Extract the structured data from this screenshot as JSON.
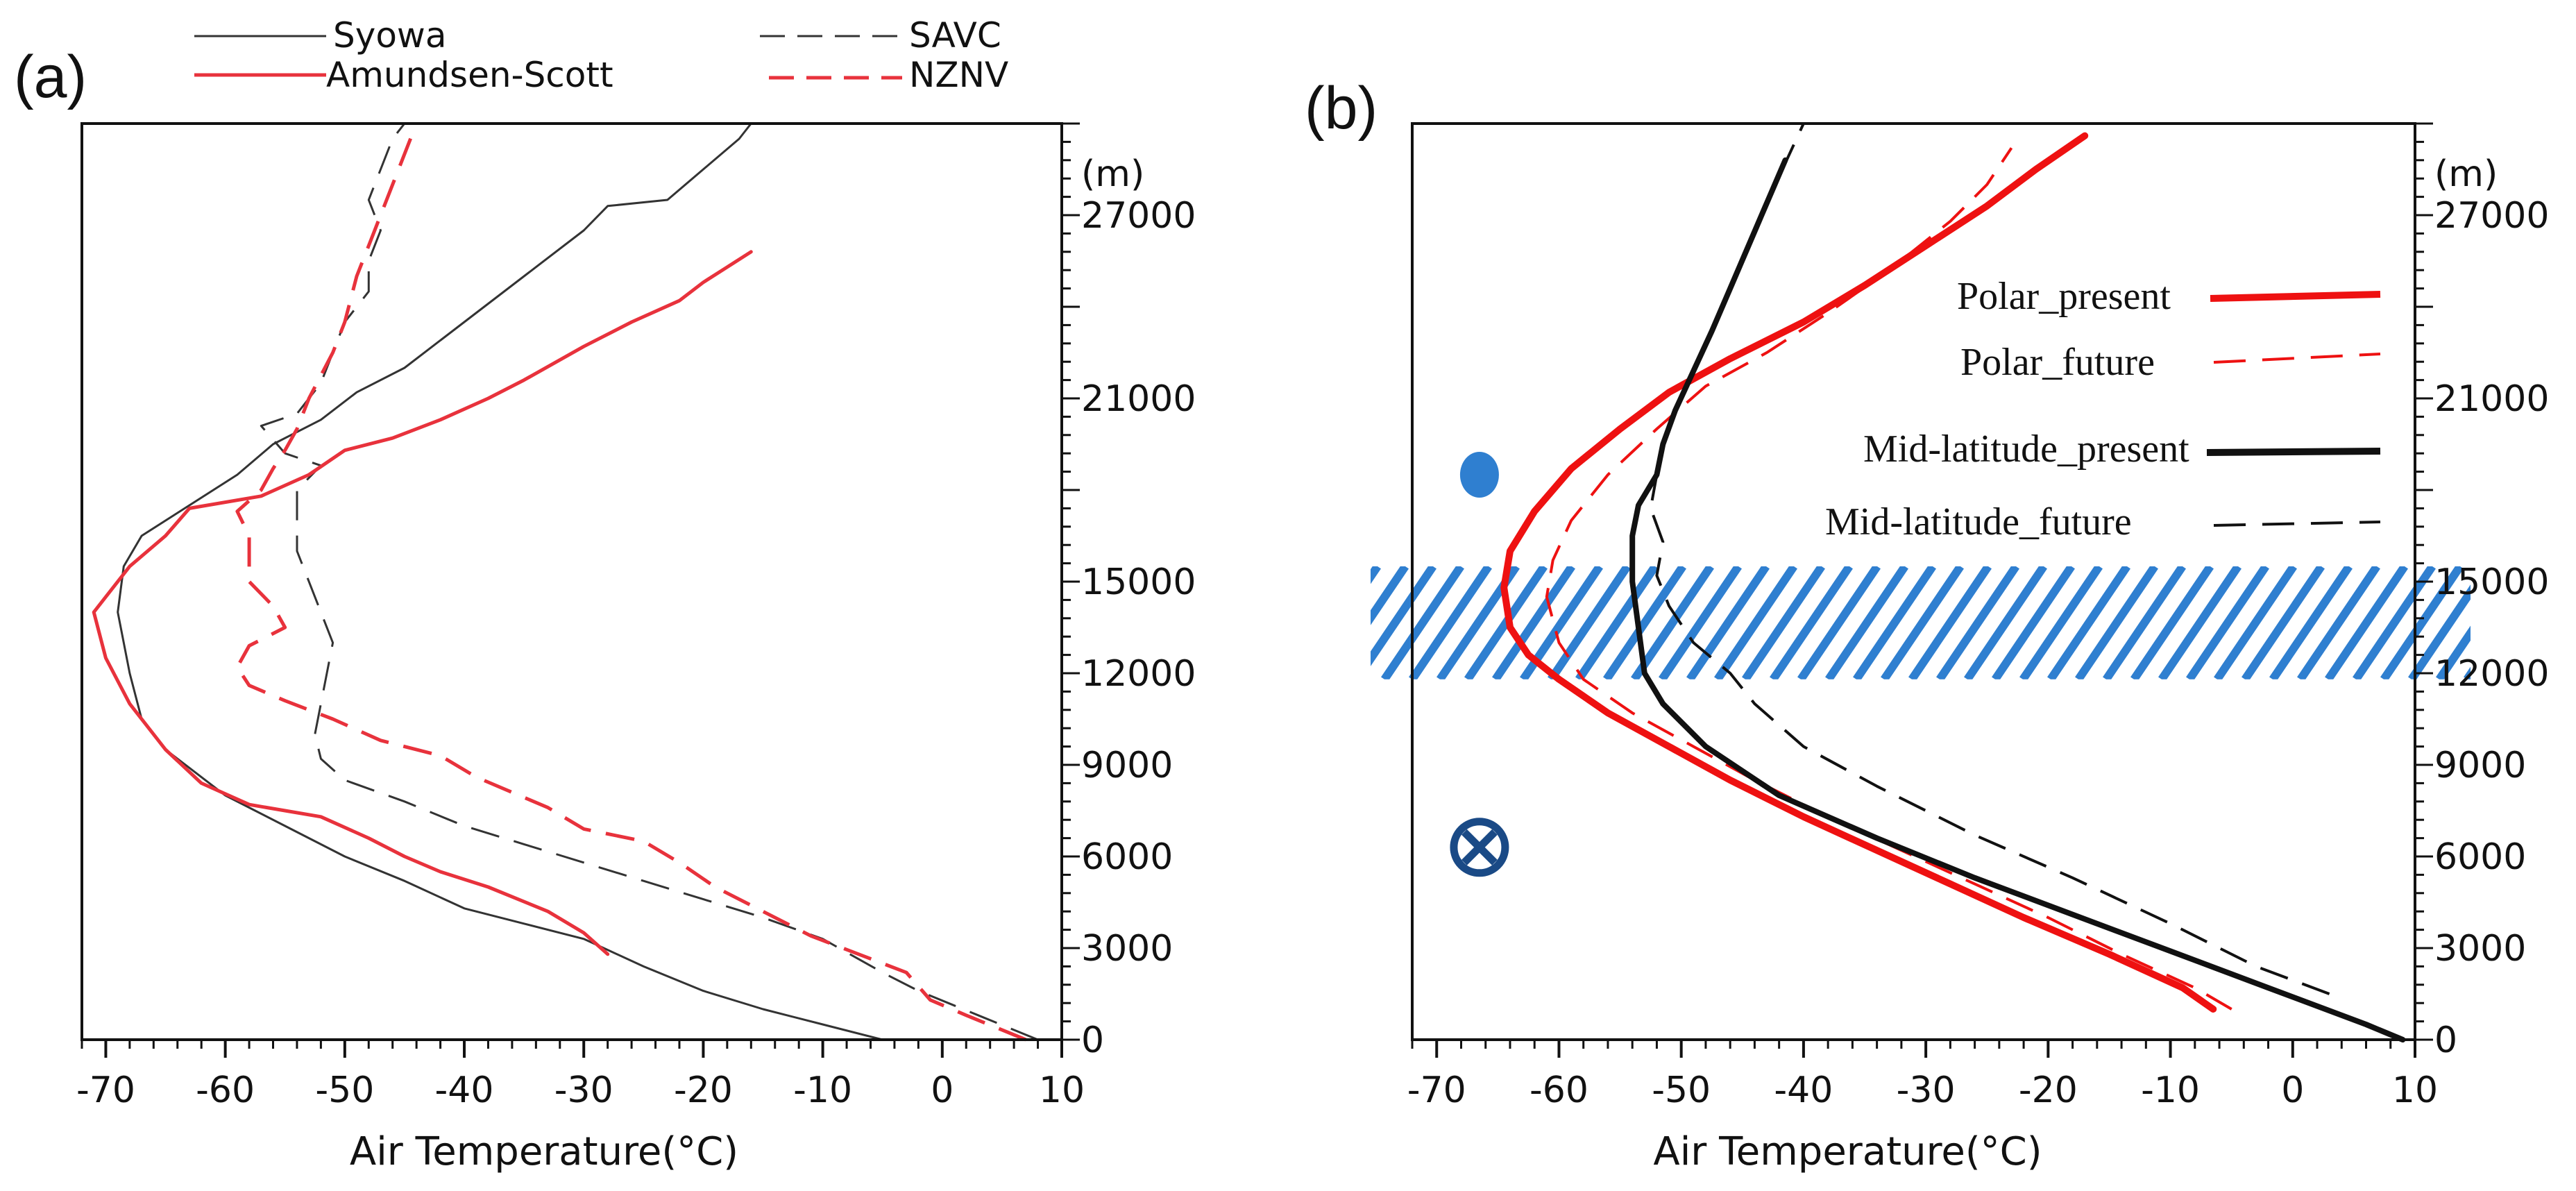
{
  "chart_data": [
    {
      "panel": "(a)",
      "type": "line",
      "xlabel": "Air Temperature(°C)",
      "xlim": [
        -72,
        10
      ],
      "xticks": [
        -70,
        -60,
        -50,
        -40,
        -30,
        -20,
        -10,
        0,
        10
      ],
      "y_unit": "(m)",
      "ylim": [
        0,
        30000
      ],
      "yticks": [
        0,
        3000,
        6000,
        9000,
        12000,
        15000,
        21000,
        27000
      ],
      "legend": [
        {
          "name": "Syowa",
          "color": "#333333",
          "dash": "solid"
        },
        {
          "name": "SAVC",
          "color": "#333333",
          "dash": "dashed"
        },
        {
          "name": "Amundsen-Scott",
          "color": "#e8323c",
          "dash": "solid"
        },
        {
          "name": "NZNV",
          "color": "#e8323c",
          "dash": "dashed"
        }
      ],
      "series": [
        {
          "name": "Syowa",
          "color": "#333333",
          "dash": "solid",
          "width": 3,
          "points": [
            [
              -5,
              0
            ],
            [
              -10,
              500
            ],
            [
              -15,
              1000
            ],
            [
              -20,
              1600
            ],
            [
              -25,
              2400
            ],
            [
              -30,
              3300
            ],
            [
              -35,
              3800
            ],
            [
              -40,
              4300
            ],
            [
              -45,
              5200
            ],
            [
              -50,
              6000
            ],
            [
              -55,
              7000
            ],
            [
              -60,
              8000
            ],
            [
              -65,
              9500
            ],
            [
              -67,
              10500
            ],
            [
              -68,
              12000
            ],
            [
              -69,
              14000
            ],
            [
              -68.5,
              15500
            ],
            [
              -67,
              16500
            ],
            [
              -63,
              17500
            ],
            [
              -59,
              18500
            ],
            [
              -56,
              19500
            ],
            [
              -52,
              20300
            ],
            [
              -49,
              21200
            ],
            [
              -45,
              22000
            ],
            [
              -40,
              23500
            ],
            [
              -35,
              25000
            ],
            [
              -30,
              26500
            ],
            [
              -28,
              27300
            ],
            [
              -23,
              27500
            ],
            [
              -20,
              28500
            ],
            [
              -17,
              29500
            ],
            [
              -16,
              30000
            ]
          ]
        },
        {
          "name": "SAVC",
          "color": "#333333",
          "dash": "dashed",
          "width": 3,
          "points": [
            [
              8,
              0
            ],
            [
              3,
              800
            ],
            [
              -2,
              1600
            ],
            [
              -5,
              2200
            ],
            [
              -10,
              3300
            ],
            [
              -15,
              4000
            ],
            [
              -20,
              4600
            ],
            [
              -25,
              5200
            ],
            [
              -30,
              5800
            ],
            [
              -35,
              6400
            ],
            [
              -40,
              7000
            ],
            [
              -45,
              7800
            ],
            [
              -50,
              8500
            ],
            [
              -52,
              9200
            ],
            [
              -52.5,
              10000
            ],
            [
              -52,
              11000
            ],
            [
              -51.5,
              12000
            ],
            [
              -51,
              13000
            ],
            [
              -52,
              14000
            ],
            [
              -53,
              15000
            ],
            [
              -54,
              16000
            ],
            [
              -54,
              17000
            ],
            [
              -54,
              18000
            ],
            [
              -52,
              18800
            ],
            [
              -55,
              19200
            ],
            [
              -57,
              20100
            ],
            [
              -54,
              20500
            ],
            [
              -52,
              21500
            ],
            [
              -51,
              22500
            ],
            [
              -50,
              23500
            ],
            [
              -48,
              24500
            ],
            [
              -48,
              25500
            ],
            [
              -47,
              26500
            ],
            [
              -48,
              27500
            ],
            [
              -47,
              28500
            ],
            [
              -46,
              29500
            ],
            [
              -45,
              30000
            ]
          ]
        },
        {
          "name": "Amundsen-Scott",
          "color": "#e8323c",
          "dash": "solid",
          "width": 5,
          "points": [
            [
              -28,
              2800
            ],
            [
              -30,
              3500
            ],
            [
              -33,
              4200
            ],
            [
              -38,
              5000
            ],
            [
              -42,
              5500
            ],
            [
              -45,
              6000
            ],
            [
              -48,
              6600
            ],
            [
              -52,
              7300
            ],
            [
              -55,
              7500
            ],
            [
              -58,
              7700
            ],
            [
              -62,
              8400
            ],
            [
              -65,
              9500
            ],
            [
              -68,
              11000
            ],
            [
              -70,
              12500
            ],
            [
              -71,
              14000
            ],
            [
              -70,
              14500
            ],
            [
              -68,
              15500
            ],
            [
              -65,
              16500
            ],
            [
              -63,
              17400
            ],
            [
              -57,
              17800
            ],
            [
              -53,
              18500
            ],
            [
              -50,
              19300
            ],
            [
              -46,
              19700
            ],
            [
              -42,
              20300
            ],
            [
              -38,
              21000
            ],
            [
              -35,
              21600
            ],
            [
              -30,
              22700
            ],
            [
              -26,
              23500
            ],
            [
              -22,
              24200
            ],
            [
              -20,
              24800
            ],
            [
              -18,
              25300
            ],
            [
              -16,
              25800
            ]
          ]
        },
        {
          "name": "NZNV",
          "color": "#e8323c",
          "dash": "dashed",
          "width": 5,
          "points": [
            [
              7,
              0
            ],
            [
              2,
              800
            ],
            [
              -1,
              1300
            ],
            [
              -3,
              2200
            ],
            [
              -7,
              2800
            ],
            [
              -11,
              3400
            ],
            [
              -15,
              4200
            ],
            [
              -19,
              5000
            ],
            [
              -22,
              5800
            ],
            [
              -25,
              6500
            ],
            [
              -30,
              6900
            ],
            [
              -33,
              7600
            ],
            [
              -36,
              8100
            ],
            [
              -39,
              8600
            ],
            [
              -42,
              9300
            ],
            [
              -47,
              9800
            ],
            [
              -51,
              10500
            ],
            [
              -55,
              11100
            ],
            [
              -58,
              11600
            ],
            [
              -59,
              12200
            ],
            [
              -58,
              12900
            ],
            [
              -55,
              13500
            ],
            [
              -56,
              14200
            ],
            [
              -58,
              15000
            ],
            [
              -58,
              16500
            ],
            [
              -59,
              17300
            ],
            [
              -57,
              18000
            ],
            [
              -56,
              18700
            ],
            [
              -55,
              19300
            ],
            [
              -54,
              20000
            ],
            [
              -53,
              21000
            ],
            [
              -51,
              22500
            ],
            [
              -50,
              23500
            ],
            [
              -49,
              25000
            ],
            [
              -48,
              26000
            ],
            [
              -47,
              27000
            ],
            [
              -46,
              28000
            ],
            [
              -45,
              29000
            ],
            [
              -44,
              30000
            ]
          ]
        }
      ]
    },
    {
      "panel": "(b)",
      "type": "line",
      "xlabel": "Air Temperature(°C)",
      "xlim": [
        -72,
        10
      ],
      "xticks": [
        -70,
        -60,
        -50,
        -40,
        -30,
        -20,
        -10,
        0,
        10
      ],
      "y_unit": "(m)",
      "ylim": [
        0,
        30000
      ],
      "yticks": [
        0,
        3000,
        6000,
        9000,
        12000,
        15000,
        21000,
        27000
      ],
      "legend": [
        {
          "name": "Polar_present",
          "color": "#ee1111",
          "dash": "solid"
        },
        {
          "name": "Polar_future",
          "color": "#ee1111",
          "dash": "dashed"
        },
        {
          "name": "Mid-latitude_present",
          "color": "#111111",
          "dash": "solid"
        },
        {
          "name": "Mid-latitude_future",
          "color": "#111111",
          "dash": "dashed"
        }
      ],
      "hatch_band": {
        "y_range": [
          11800,
          15500
        ],
        "color": "#2f7fd0"
      },
      "symbols": [
        {
          "name": "dot",
          "x": -66.5,
          "y": 18500,
          "color": "#2f7fd0"
        },
        {
          "name": "cross-circle",
          "x": -66.5,
          "y": 6300,
          "color": "#1a4a86"
        }
      ],
      "series": [
        {
          "name": "Polar_present",
          "color": "#ee1111",
          "dash": "solid",
          "width": 10,
          "points": [
            [
              -6.5,
              1000
            ],
            [
              -9,
              1700
            ],
            [
              -15,
              2800
            ],
            [
              -22,
              4000
            ],
            [
              -28,
              5100
            ],
            [
              -34,
              6200
            ],
            [
              -40,
              7300
            ],
            [
              -46,
              8500
            ],
            [
              -51,
              9600
            ],
            [
              -56,
              10700
            ],
            [
              -60,
              11800
            ],
            [
              -62.5,
              12600
            ],
            [
              -64,
              13500
            ],
            [
              -64.5,
              14800
            ],
            [
              -64,
              16000
            ],
            [
              -62,
              17300
            ],
            [
              -59,
              18700
            ],
            [
              -55,
              20000
            ],
            [
              -51,
              21200
            ],
            [
              -46,
              22300
            ],
            [
              -40,
              23500
            ],
            [
              -35,
              24700
            ],
            [
              -30,
              26000
            ],
            [
              -25,
              27300
            ],
            [
              -21,
              28500
            ],
            [
              -17,
              29600
            ]
          ]
        },
        {
          "name": "Polar_future",
          "color": "#ee1111",
          "dash": "dashed",
          "width": 4,
          "points": [
            [
              -5,
              1000
            ],
            [
              -8,
              1700
            ],
            [
              -14,
              2800
            ],
            [
              -20,
              4000
            ],
            [
              -26,
              5100
            ],
            [
              -32,
              6200
            ],
            [
              -38,
              7300
            ],
            [
              -44,
              8500
            ],
            [
              -49,
              9600
            ],
            [
              -54,
              10700
            ],
            [
              -58,
              11800
            ],
            [
              -60,
              13000
            ],
            [
              -61,
              14500
            ],
            [
              -60.5,
              15700
            ],
            [
              -59,
              17000
            ],
            [
              -56,
              18500
            ],
            [
              -52,
              20000
            ],
            [
              -48,
              21400
            ],
            [
              -43,
              22500
            ],
            [
              -38,
              23800
            ],
            [
              -33,
              25200
            ],
            [
              -28,
              26800
            ],
            [
              -25,
              28000
            ],
            [
              -23,
              29200
            ]
          ]
        },
        {
          "name": "Mid-latitude_present",
          "color": "#111111",
          "dash": "solid",
          "width": 8,
          "points": [
            [
              9,
              0
            ],
            [
              6,
              500
            ],
            [
              -2,
              1700
            ],
            [
              -10,
              2900
            ],
            [
              -18,
              4100
            ],
            [
              -26,
              5300
            ],
            [
              -34,
              6600
            ],
            [
              -42,
              8000
            ],
            [
              -48,
              9600
            ],
            [
              -51.5,
              11000
            ],
            [
              -53,
              12000
            ],
            [
              -53.5,
              13500
            ],
            [
              -54,
              15000
            ],
            [
              -54,
              16500
            ],
            [
              -53.5,
              17500
            ],
            [
              -52,
              18500
            ],
            [
              -51.5,
              19500
            ],
            [
              -50.5,
              20600
            ],
            [
              -49,
              21900
            ],
            [
              -47.5,
              23200
            ],
            [
              -46,
              24600
            ],
            [
              -44.5,
              26000
            ],
            [
              -43,
              27400
            ],
            [
              -41.5,
              28800
            ]
          ]
        },
        {
          "name": "Mid-latitude_future",
          "color": "#111111",
          "dash": "dashed",
          "width": 4,
          "points": [
            [
              3,
              1500
            ],
            [
              -3,
              2400
            ],
            [
              -10,
              3800
            ],
            [
              -18,
              5300
            ],
            [
              -26,
              6700
            ],
            [
              -34,
              8300
            ],
            [
              -40,
              9600
            ],
            [
              -44,
              11000
            ],
            [
              -46,
              12000
            ],
            [
              -49,
              13000
            ],
            [
              -51,
              14200
            ],
            [
              -52,
              15200
            ],
            [
              -51.5,
              16300
            ],
            [
              -52.5,
              17400
            ],
            [
              -52,
              18500
            ],
            [
              -51.5,
              19600
            ],
            [
              -50.5,
              20700
            ],
            [
              -49,
              21900
            ],
            [
              -47.5,
              23200
            ],
            [
              -46,
              24500
            ],
            [
              -44.5,
              25900
            ],
            [
              -43,
              27300
            ],
            [
              -41.5,
              28700
            ],
            [
              -40,
              30000
            ]
          ]
        }
      ]
    }
  ]
}
